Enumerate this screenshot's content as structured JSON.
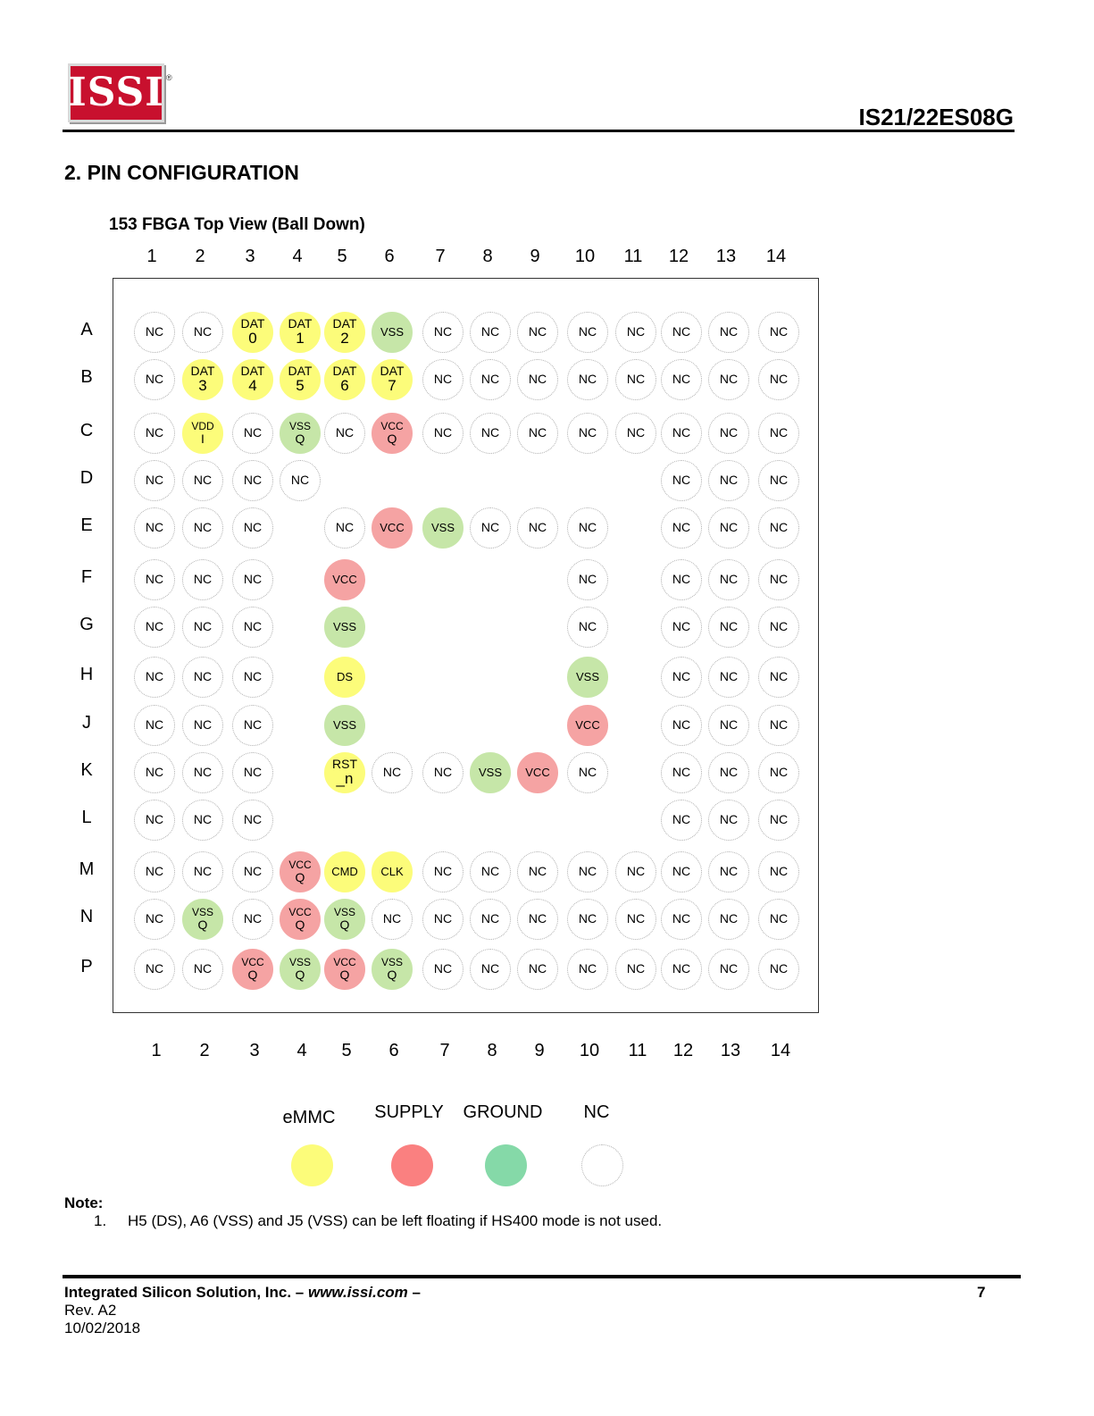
{
  "header": {
    "logo_text": "ISSI",
    "registered_mark": "®",
    "doc_title": "IS21/22ES08G"
  },
  "section_title": "2.  PIN CONFIGURATION",
  "figure_title": "153 FBGA Top View (Ball Down)",
  "columns": [
    "1",
    "2",
    "3",
    "4",
    "5",
    "6",
    "7",
    "8",
    "9",
    "10",
    "11",
    "12",
    "13",
    "14"
  ],
  "rows": [
    "A",
    "B",
    "C",
    "D",
    "E",
    "F",
    "G",
    "H",
    "J",
    "K",
    "L",
    "M",
    "N",
    "P"
  ],
  "colors": {
    "emmc": "#fcfc7a",
    "supply": "#f5a3a3",
    "ground": "#c6e6a8",
    "legend_supply": "#fa8080",
    "legend_ground": "#85d9a8",
    "nc": "#ffffff"
  },
  "grid": [
    [
      "NC",
      "NC",
      "DAT|0",
      "DAT|1",
      "DAT|2",
      "VSS",
      "NC",
      "NC",
      "NC",
      "NC",
      "NC",
      "NC",
      "NC",
      "NC"
    ],
    [
      "NC",
      "DAT|3",
      "DAT|4",
      "DAT|5",
      "DAT|6",
      "DAT|7",
      "NC",
      "NC",
      "NC",
      "NC",
      "NC",
      "NC",
      "NC",
      "NC"
    ],
    [
      "NC",
      "VDD|I",
      "NC",
      "VSS|Q",
      "NC",
      "VCC|Q",
      "NC",
      "NC",
      "NC",
      "NC",
      "NC",
      "NC",
      "NC",
      "NC"
    ],
    [
      "NC",
      "NC",
      "NC",
      "NC",
      "",
      "",
      "",
      "",
      "",
      "",
      "",
      "NC",
      "NC",
      "NC"
    ],
    [
      "NC",
      "NC",
      "NC",
      "",
      "NC",
      "VCC",
      "VSS",
      "NC",
      "NC",
      "NC",
      "",
      "NC",
      "NC",
      "NC"
    ],
    [
      "NC",
      "NC",
      "NC",
      "",
      "VCC",
      "",
      "",
      "",
      "",
      "NC",
      "",
      "NC",
      "NC",
      "NC"
    ],
    [
      "NC",
      "NC",
      "NC",
      "",
      "VSS",
      "",
      "",
      "",
      "",
      "NC",
      "",
      "NC",
      "NC",
      "NC"
    ],
    [
      "NC",
      "NC",
      "NC",
      "",
      "DS",
      "",
      "",
      "",
      "",
      "VSS",
      "",
      "NC",
      "NC",
      "NC"
    ],
    [
      "NC",
      "NC",
      "NC",
      "",
      "VSS",
      "",
      "",
      "",
      "",
      "VCC",
      "",
      "NC",
      "NC",
      "NC"
    ],
    [
      "NC",
      "NC",
      "NC",
      "",
      "RST|_n",
      "NC",
      "NC",
      "VSS",
      "VCC",
      "NC",
      "",
      "NC",
      "NC",
      "NC"
    ],
    [
      "NC",
      "NC",
      "NC",
      "",
      "",
      "",
      "",
      "",
      "",
      "",
      "",
      "NC",
      "NC",
      "NC"
    ],
    [
      "NC",
      "NC",
      "NC",
      "VCC|Q",
      "CMD",
      "CLK",
      "NC",
      "NC",
      "NC",
      "NC",
      "NC",
      "NC",
      "NC",
      "NC"
    ],
    [
      "NC",
      "VSS|Q",
      "NC",
      "VCC|Q",
      "VSS|Q",
      "NC",
      "NC",
      "NC",
      "NC",
      "NC",
      "NC",
      "NC",
      "NC",
      "NC"
    ],
    [
      "NC",
      "NC",
      "VCC|Q",
      "VSS|Q",
      "VCC|Q",
      "VSS|Q",
      "NC",
      "NC",
      "NC",
      "NC",
      "NC",
      "NC",
      "NC",
      "NC"
    ]
  ],
  "legend": [
    {
      "label": "eMMC",
      "type": "emmc"
    },
    {
      "label": "SUPPLY",
      "type": "supply"
    },
    {
      "label": "GROUND",
      "type": "ground"
    },
    {
      "label": "NC",
      "type": "nc"
    }
  ],
  "note": {
    "title": "Note:",
    "items": [
      {
        "num": "1.",
        "text": "H5 (DS), A6 (VSS) and J5 (VSS) can be left floating if HS400 mode is not used."
      }
    ]
  },
  "footer": {
    "company": "Integrated Silicon Solution, Inc. – ",
    "url": "www.issi.com",
    "dash": " –",
    "page": "7",
    "rev": "Rev. A2",
    "date": "10/02/2018"
  }
}
